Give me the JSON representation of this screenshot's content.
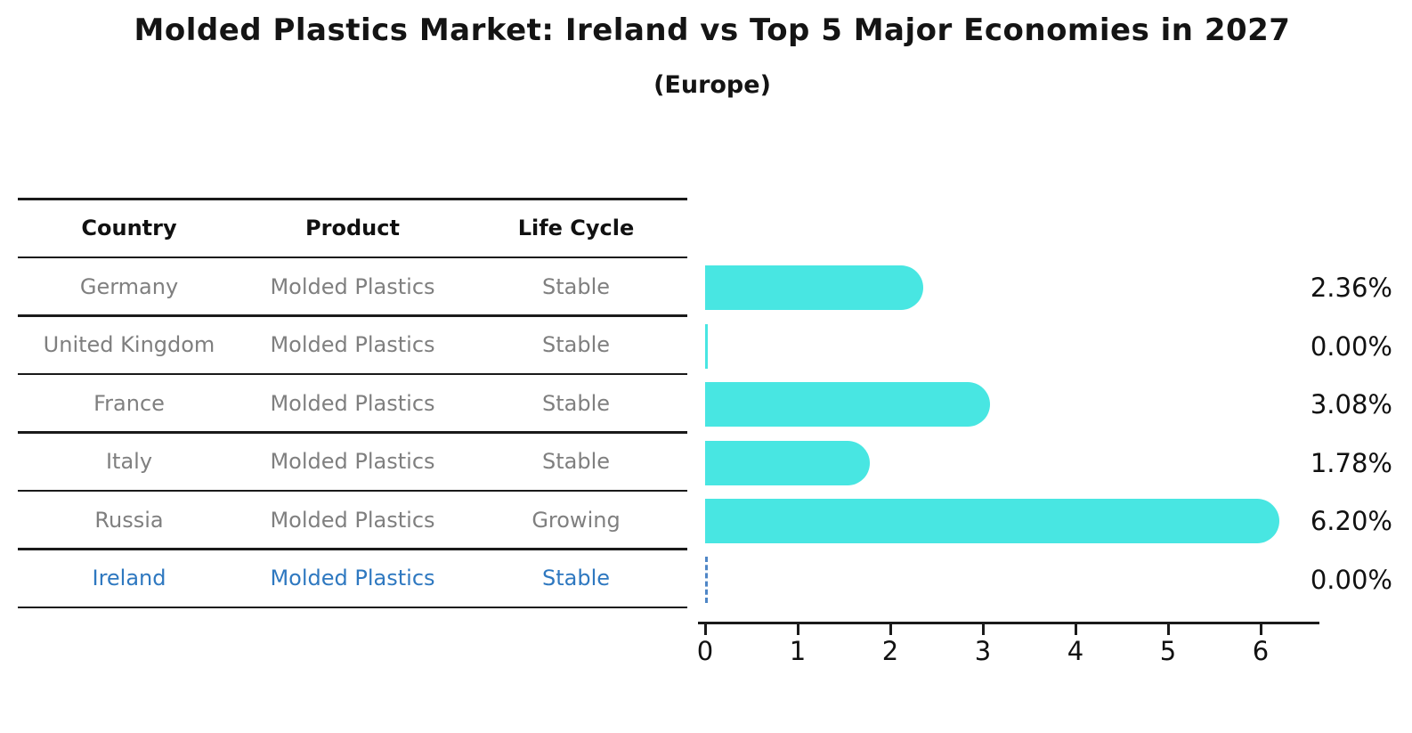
{
  "title": "Molded Plastics Market: Ireland vs Top 5 Major Economies in 2027",
  "subtitle": "(Europe)",
  "colors": {
    "bar": "#48e6e2",
    "row_text": "#7f7f7f",
    "highlight_text": "#2e78c0",
    "zero_marker": "#4f86c6",
    "axis": "#1a1a1a"
  },
  "table": {
    "headers": [
      "Country",
      "Product",
      "Life Cycle"
    ],
    "rows": [
      {
        "country": "Germany",
        "product": "Molded Plastics",
        "life_cycle": "Stable",
        "highlight": false
      },
      {
        "country": "United Kingdom",
        "product": "Molded Plastics",
        "life_cycle": "Stable",
        "highlight": false
      },
      {
        "country": "France",
        "product": "Molded Plastics",
        "life_cycle": "Stable",
        "highlight": false
      },
      {
        "country": "Italy",
        "product": "Molded Plastics",
        "life_cycle": "Stable",
        "highlight": false
      },
      {
        "country": "Russia",
        "product": "Molded Plastics",
        "life_cycle": "Growing",
        "highlight": false
      },
      {
        "country": "Ireland",
        "product": "Molded Plastics",
        "life_cycle": "Stable",
        "highlight": true
      }
    ]
  },
  "chart_data": {
    "type": "bar",
    "orientation": "horizontal",
    "title": "Molded Plastics Market: Ireland vs Top 5 Major Economies in 2027",
    "subtitle": "(Europe)",
    "categories": [
      "Germany",
      "United Kingdom",
      "France",
      "Italy",
      "Russia",
      "Ireland"
    ],
    "values": [
      2.36,
      0.0,
      3.08,
      1.78,
      6.2,
      0.0
    ],
    "value_labels": [
      "2.36%",
      "0.00%",
      "3.08%",
      "1.78%",
      "6.20%",
      "0.00%"
    ],
    "xlabel": "",
    "ylabel": "",
    "xlim": [
      0,
      6.6
    ],
    "x_ticks": [
      0,
      1,
      2,
      3,
      4,
      5,
      6
    ],
    "grid": false,
    "legend": false,
    "bar_color": "#48e6e2",
    "highlight_category": "Ireland",
    "highlight_marker": "dashed line at zero"
  }
}
